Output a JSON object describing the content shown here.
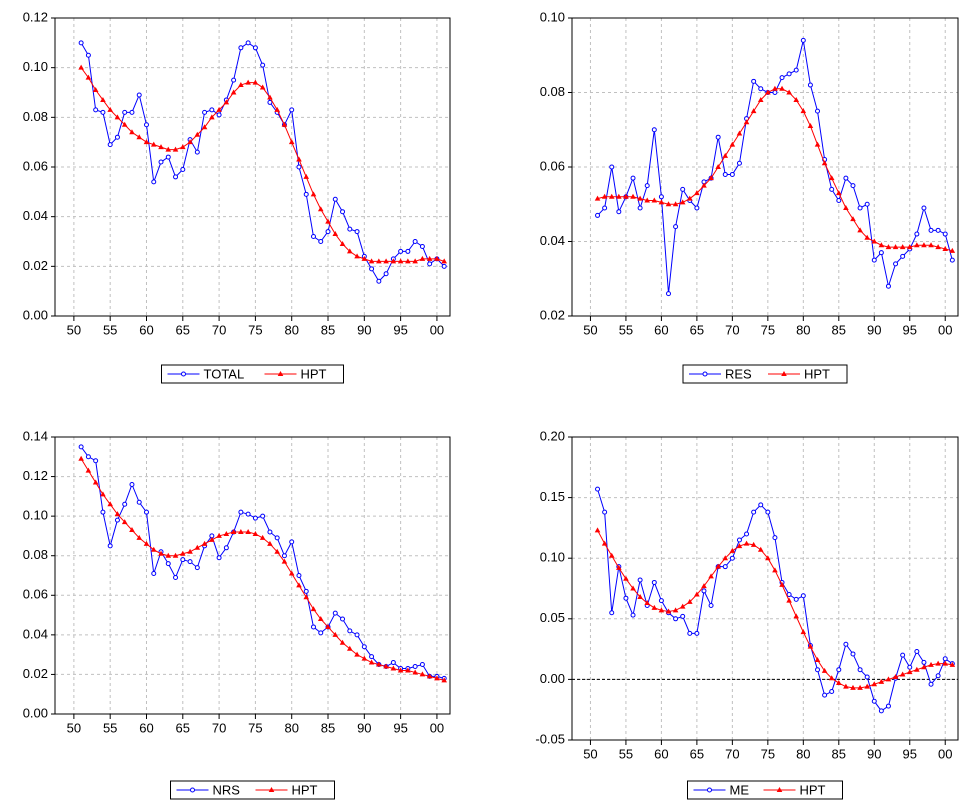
{
  "chart_data": [
    {
      "type": "line",
      "grid": true,
      "xlim": [
        1947.4,
        2001.8
      ],
      "ylim": [
        0,
        0.12
      ],
      "xticks": [
        {
          "value": 1950,
          "label": "50"
        },
        {
          "value": 1955,
          "label": "55"
        },
        {
          "value": 1960,
          "label": "60"
        },
        {
          "value": 1965,
          "label": "65"
        },
        {
          "value": 1970,
          "label": "70"
        },
        {
          "value": 1975,
          "label": "75"
        },
        {
          "value": 1980,
          "label": "80"
        },
        {
          "value": 1985,
          "label": "85"
        },
        {
          "value": 1990,
          "label": "90"
        },
        {
          "value": 1995,
          "label": "95"
        },
        {
          "value": 2000,
          "label": "00"
        }
      ],
      "yticks": [
        {
          "value": 0,
          "label": "0.00"
        },
        {
          "value": 0.02,
          "label": "0.02"
        },
        {
          "value": 0.04,
          "label": "0.04"
        },
        {
          "value": 0.06,
          "label": "0.06"
        },
        {
          "value": 0.08,
          "label": "0.08"
        },
        {
          "value": 0.1,
          "label": "0.10"
        },
        {
          "value": 0.12,
          "label": "0.12"
        }
      ],
      "x": [
        1951,
        1952,
        1953,
        1954,
        1955,
        1956,
        1957,
        1958,
        1959,
        1960,
        1961,
        1962,
        1963,
        1964,
        1965,
        1966,
        1967,
        1968,
        1969,
        1970,
        1971,
        1972,
        1973,
        1974,
        1975,
        1976,
        1977,
        1978,
        1979,
        1980,
        1981,
        1982,
        1983,
        1984,
        1985,
        1986,
        1987,
        1988,
        1989,
        1990,
        1991,
        1992,
        1993,
        1994,
        1995,
        1996,
        1997,
        1998,
        1999,
        2000,
        2001
      ],
      "series": [
        {
          "name": "TOTAL",
          "color": "#0000ff",
          "marker": "circle",
          "values": [
            0.11,
            0.105,
            0.083,
            0.082,
            0.069,
            0.072,
            0.082,
            0.082,
            0.089,
            0.077,
            0.054,
            0.062,
            0.064,
            0.056,
            0.059,
            0.071,
            0.066,
            0.082,
            0.083,
            0.081,
            0.087,
            0.095,
            0.108,
            0.11,
            0.108,
            0.101,
            0.086,
            0.082,
            0.077,
            0.083,
            0.06,
            0.049,
            0.032,
            0.03,
            0.034,
            0.047,
            0.042,
            0.035,
            0.034,
            0.024,
            0.019,
            0.014,
            0.017,
            0.023,
            0.026,
            0.026,
            0.03,
            0.028,
            0.021,
            0.023,
            0.02
          ]
        },
        {
          "name": "HPT",
          "color": "#ff0000",
          "marker": "triangle",
          "values": [
            0.1,
            0.096,
            0.091,
            0.087,
            0.083,
            0.08,
            0.077,
            0.074,
            0.072,
            0.07,
            0.069,
            0.068,
            0.067,
            0.067,
            0.068,
            0.07,
            0.073,
            0.076,
            0.08,
            0.083,
            0.086,
            0.09,
            0.093,
            0.094,
            0.094,
            0.092,
            0.088,
            0.083,
            0.077,
            0.07,
            0.063,
            0.056,
            0.049,
            0.043,
            0.038,
            0.033,
            0.029,
            0.026,
            0.024,
            0.023,
            0.022,
            0.022,
            0.022,
            0.022,
            0.022,
            0.022,
            0.022,
            0.023,
            0.023,
            0.023,
            0.022
          ]
        }
      ]
    },
    {
      "type": "line",
      "grid": true,
      "xlim": [
        1947.4,
        2001.8
      ],
      "ylim": [
        0.02,
        0.1
      ],
      "xticks": [
        {
          "value": 1950,
          "label": "50"
        },
        {
          "value": 1955,
          "label": "55"
        },
        {
          "value": 1960,
          "label": "60"
        },
        {
          "value": 1965,
          "label": "65"
        },
        {
          "value": 1970,
          "label": "70"
        },
        {
          "value": 1975,
          "label": "75"
        },
        {
          "value": 1980,
          "label": "80"
        },
        {
          "value": 1985,
          "label": "85"
        },
        {
          "value": 1990,
          "label": "90"
        },
        {
          "value": 1995,
          "label": "95"
        },
        {
          "value": 2000,
          "label": "00"
        }
      ],
      "yticks": [
        {
          "value": 0.02,
          "label": "0.02"
        },
        {
          "value": 0.04,
          "label": "0.04"
        },
        {
          "value": 0.06,
          "label": "0.06"
        },
        {
          "value": 0.08,
          "label": "0.08"
        },
        {
          "value": 0.1,
          "label": "0.10"
        }
      ],
      "x": [
        1951,
        1952,
        1953,
        1954,
        1955,
        1956,
        1957,
        1958,
        1959,
        1960,
        1961,
        1962,
        1963,
        1964,
        1965,
        1966,
        1967,
        1968,
        1969,
        1970,
        1971,
        1972,
        1973,
        1974,
        1975,
        1976,
        1977,
        1978,
        1979,
        1980,
        1981,
        1982,
        1983,
        1984,
        1985,
        1986,
        1987,
        1988,
        1989,
        1990,
        1991,
        1992,
        1993,
        1994,
        1995,
        1996,
        1997,
        1998,
        1999,
        2000,
        2001
      ],
      "series": [
        {
          "name": "RES",
          "color": "#0000ff",
          "marker": "circle",
          "values": [
            0.047,
            0.049,
            0.06,
            0.048,
            0.052,
            0.057,
            0.049,
            0.055,
            0.07,
            0.052,
            0.026,
            0.044,
            0.054,
            0.051,
            0.049,
            0.056,
            0.057,
            0.068,
            0.058,
            0.058,
            0.061,
            0.073,
            0.083,
            0.081,
            0.08,
            0.08,
            0.084,
            0.085,
            0.086,
            0.094,
            0.082,
            0.075,
            0.062,
            0.054,
            0.051,
            0.057,
            0.055,
            0.049,
            0.05,
            0.035,
            0.037,
            0.028,
            0.034,
            0.036,
            0.038,
            0.042,
            0.049,
            0.043,
            0.043,
            0.042,
            0.035
          ]
        },
        {
          "name": "HPT",
          "color": "#ff0000",
          "marker": "triangle",
          "values": [
            0.0515,
            0.052,
            0.052,
            0.052,
            0.052,
            0.052,
            0.0515,
            0.051,
            0.051,
            0.0505,
            0.05,
            0.05,
            0.0505,
            0.0515,
            0.053,
            0.055,
            0.057,
            0.06,
            0.063,
            0.066,
            0.069,
            0.072,
            0.075,
            0.078,
            0.08,
            0.081,
            0.081,
            0.08,
            0.078,
            0.075,
            0.071,
            0.066,
            0.061,
            0.057,
            0.053,
            0.049,
            0.046,
            0.043,
            0.041,
            0.04,
            0.039,
            0.0385,
            0.0385,
            0.0385,
            0.0385,
            0.039,
            0.039,
            0.039,
            0.0385,
            0.038,
            0.0375
          ]
        }
      ]
    },
    {
      "type": "line",
      "grid": true,
      "xlim": [
        1947.4,
        2001.8
      ],
      "ylim": [
        0,
        0.14
      ],
      "xticks": [
        {
          "value": 1950,
          "label": "50"
        },
        {
          "value": 1955,
          "label": "55"
        },
        {
          "value": 1960,
          "label": "60"
        },
        {
          "value": 1965,
          "label": "65"
        },
        {
          "value": 1970,
          "label": "70"
        },
        {
          "value": 1975,
          "label": "75"
        },
        {
          "value": 1980,
          "label": "80"
        },
        {
          "value": 1985,
          "label": "85"
        },
        {
          "value": 1990,
          "label": "90"
        },
        {
          "value": 1995,
          "label": "95"
        },
        {
          "value": 2000,
          "label": "00"
        }
      ],
      "yticks": [
        {
          "value": 0,
          "label": "0.00"
        },
        {
          "value": 0.02,
          "label": "0.02"
        },
        {
          "value": 0.04,
          "label": "0.04"
        },
        {
          "value": 0.06,
          "label": "0.06"
        },
        {
          "value": 0.08,
          "label": "0.08"
        },
        {
          "value": 0.1,
          "label": "0.10"
        },
        {
          "value": 0.12,
          "label": "0.12"
        },
        {
          "value": 0.14,
          "label": "0.14"
        }
      ],
      "x": [
        1951,
        1952,
        1953,
        1954,
        1955,
        1956,
        1957,
        1958,
        1959,
        1960,
        1961,
        1962,
        1963,
        1964,
        1965,
        1966,
        1967,
        1968,
        1969,
        1970,
        1971,
        1972,
        1973,
        1974,
        1975,
        1976,
        1977,
        1978,
        1979,
        1980,
        1981,
        1982,
        1983,
        1984,
        1985,
        1986,
        1987,
        1988,
        1989,
        1990,
        1991,
        1992,
        1993,
        1994,
        1995,
        1996,
        1997,
        1998,
        1999,
        2000,
        2001
      ],
      "series": [
        {
          "name": "NRS",
          "color": "#0000ff",
          "marker": "circle",
          "values": [
            0.135,
            0.13,
            0.128,
            0.102,
            0.085,
            0.098,
            0.106,
            0.116,
            0.107,
            0.102,
            0.071,
            0.082,
            0.076,
            0.069,
            0.078,
            0.077,
            0.074,
            0.085,
            0.09,
            0.079,
            0.084,
            0.092,
            0.102,
            0.101,
            0.099,
            0.1,
            0.092,
            0.089,
            0.08,
            0.087,
            0.07,
            0.062,
            0.044,
            0.041,
            0.044,
            0.051,
            0.048,
            0.042,
            0.04,
            0.034,
            0.029,
            0.025,
            0.024,
            0.026,
            0.023,
            0.023,
            0.024,
            0.025,
            0.019,
            0.019,
            0.018
          ]
        },
        {
          "name": "HPT",
          "color": "#ff0000",
          "marker": "triangle",
          "values": [
            0.129,
            0.123,
            0.117,
            0.111,
            0.106,
            0.101,
            0.097,
            0.093,
            0.089,
            0.086,
            0.083,
            0.081,
            0.08,
            0.08,
            0.081,
            0.082,
            0.084,
            0.086,
            0.088,
            0.09,
            0.091,
            0.092,
            0.092,
            0.092,
            0.091,
            0.089,
            0.086,
            0.082,
            0.077,
            0.071,
            0.065,
            0.059,
            0.053,
            0.048,
            0.044,
            0.04,
            0.036,
            0.033,
            0.03,
            0.028,
            0.026,
            0.025,
            0.024,
            0.023,
            0.022,
            0.022,
            0.021,
            0.02,
            0.019,
            0.018,
            0.017
          ]
        }
      ]
    },
    {
      "type": "line",
      "grid": true,
      "zero_line": true,
      "xlim": [
        1947.4,
        2001.8
      ],
      "ylim": [
        -0.05,
        0.2
      ],
      "xticks": [
        {
          "value": 1950,
          "label": "50"
        },
        {
          "value": 1955,
          "label": "55"
        },
        {
          "value": 1960,
          "label": "60"
        },
        {
          "value": 1965,
          "label": "65"
        },
        {
          "value": 1970,
          "label": "70"
        },
        {
          "value": 1975,
          "label": "75"
        },
        {
          "value": 1980,
          "label": "80"
        },
        {
          "value": 1985,
          "label": "85"
        },
        {
          "value": 1990,
          "label": "90"
        },
        {
          "value": 1995,
          "label": "95"
        },
        {
          "value": 2000,
          "label": "00"
        }
      ],
      "yticks": [
        {
          "value": -0.05,
          "label": "-0.05"
        },
        {
          "value": 0,
          "label": "0.00"
        },
        {
          "value": 0.05,
          "label": "0.05"
        },
        {
          "value": 0.1,
          "label": "0.10"
        },
        {
          "value": 0.15,
          "label": "0.15"
        },
        {
          "value": 0.2,
          "label": "0.20"
        }
      ],
      "x": [
        1951,
        1952,
        1953,
        1954,
        1955,
        1956,
        1957,
        1958,
        1959,
        1960,
        1961,
        1962,
        1963,
        1964,
        1965,
        1966,
        1967,
        1968,
        1969,
        1970,
        1971,
        1972,
        1973,
        1974,
        1975,
        1976,
        1977,
        1978,
        1979,
        1980,
        1981,
        1982,
        1983,
        1984,
        1985,
        1986,
        1987,
        1988,
        1989,
        1990,
        1991,
        1992,
        1993,
        1994,
        1995,
        1996,
        1997,
        1998,
        1999,
        2000,
        2001
      ],
      "series": [
        {
          "name": "ME",
          "color": "#0000ff",
          "marker": "circle",
          "values": [
            0.157,
            0.138,
            0.055,
            0.093,
            0.067,
            0.053,
            0.082,
            0.061,
            0.08,
            0.065,
            0.055,
            0.05,
            0.052,
            0.038,
            0.038,
            0.073,
            0.061,
            0.093,
            0.093,
            0.1,
            0.115,
            0.12,
            0.138,
            0.144,
            0.138,
            0.117,
            0.08,
            0.07,
            0.066,
            0.069,
            0.028,
            0.008,
            -0.013,
            -0.01,
            0.008,
            0.029,
            0.021,
            0.008,
            0.002,
            -0.018,
            -0.026,
            -0.022,
            0.001,
            0.02,
            0.01,
            0.023,
            0.014,
            -0.004,
            0.003,
            0.017,
            0.013
          ]
        },
        {
          "name": "HPT",
          "color": "#ff0000",
          "marker": "triangle",
          "values": [
            0.123,
            0.112,
            0.102,
            0.092,
            0.083,
            0.075,
            0.068,
            0.063,
            0.059,
            0.057,
            0.056,
            0.057,
            0.06,
            0.064,
            0.07,
            0.077,
            0.085,
            0.093,
            0.1,
            0.106,
            0.11,
            0.112,
            0.111,
            0.107,
            0.1,
            0.09,
            0.078,
            0.065,
            0.052,
            0.039,
            0.027,
            0.016,
            0.007,
            0.001,
            -0.003,
            -0.006,
            -0.007,
            -0.007,
            -0.006,
            -0.004,
            -0.002,
            0.0,
            0.002,
            0.004,
            0.006,
            0.008,
            0.01,
            0.012,
            0.013,
            0.013,
            0.012
          ]
        }
      ]
    }
  ]
}
